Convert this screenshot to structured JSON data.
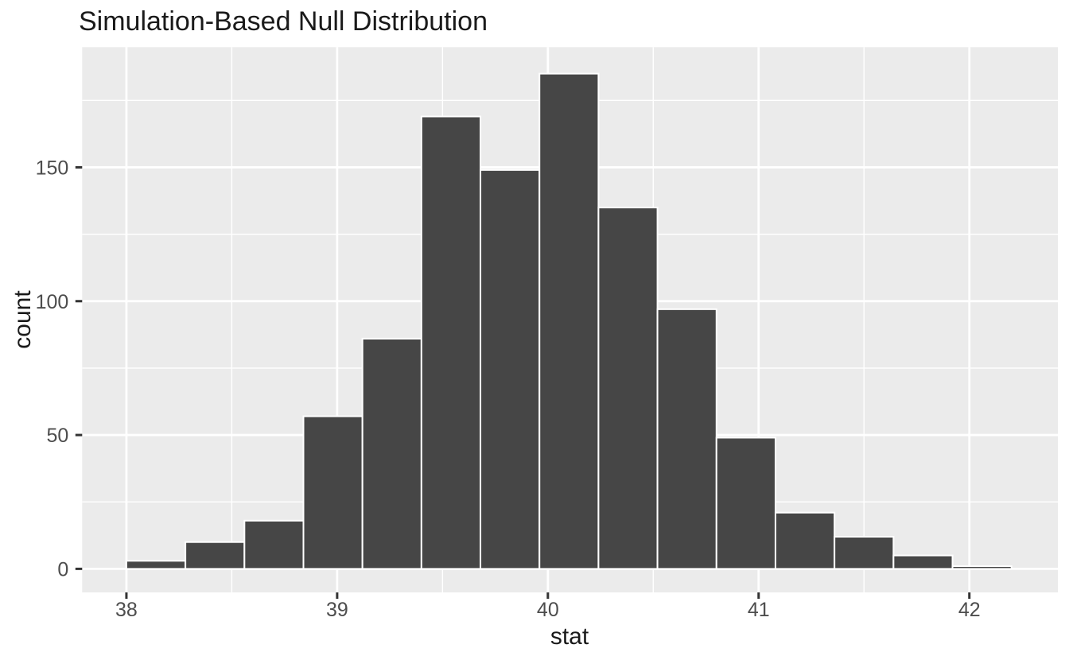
{
  "chart_data": {
    "type": "bar",
    "variant": "histogram",
    "title": "Simulation-Based Null Distribution",
    "xlabel": "stat",
    "ylabel": "count",
    "bins": {
      "start": 38.0,
      "width": 0.28,
      "n": 15,
      "edges": [
        38.0,
        38.28,
        38.56,
        38.84,
        39.12,
        39.4,
        39.68,
        39.96,
        40.24,
        40.52,
        40.8,
        41.08,
        41.36,
        41.64,
        41.92,
        42.2
      ]
    },
    "counts": [
      3,
      10,
      18,
      57,
      86,
      169,
      149,
      185,
      135,
      97,
      49,
      21,
      12,
      5,
      1
    ],
    "x_tick_labels": [
      "38",
      "39",
      "40",
      "41",
      "42"
    ],
    "x_major_ticks": [
      38,
      39,
      40,
      41,
      42
    ],
    "x_minor_gridlines": [
      38.5,
      39.5,
      40.5,
      41.5
    ],
    "y_tick_labels": [
      "0",
      "50",
      "100",
      "150"
    ],
    "y_major_ticks": [
      0,
      50,
      100,
      150
    ],
    "y_minor_gridlines": [
      25,
      75,
      125,
      175
    ],
    "xlim": [
      37.79,
      42.42
    ],
    "ylim": [
      -8.8,
      194.9
    ],
    "grid": "major-and-minor-white",
    "legend_position": "none",
    "colors": {
      "figure_background": "#FFFFFF",
      "panel_background": "#EBEBEB",
      "gridline": "#FFFFFF",
      "bar_fill": "#464646",
      "bar_stroke": "#FFFFFF",
      "tick_mark": "#333333",
      "tick_label": "#4D4D4D",
      "text": "#1A1A1A"
    }
  }
}
